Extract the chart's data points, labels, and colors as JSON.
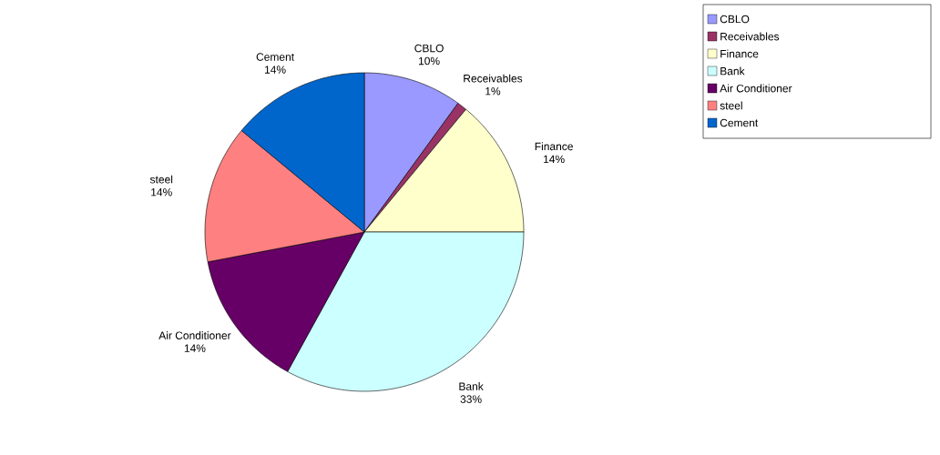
{
  "chart_data": {
    "type": "pie",
    "categories": [
      "CBLO",
      "Receivables",
      "Finance",
      "Bank",
      "Air Conditioner",
      "steel",
      "Cement"
    ],
    "values": [
      10,
      1,
      14,
      33,
      14,
      14,
      14
    ],
    "colors": [
      "#9999ff",
      "#993366",
      "#ffffcc",
      "#ccffff",
      "#660066",
      "#ff8080",
      "#0066cc"
    ],
    "value_labels": [
      "10%",
      "1%",
      "14%",
      "33%",
      "14%",
      "14%",
      "14%"
    ],
    "legend": "top right"
  }
}
